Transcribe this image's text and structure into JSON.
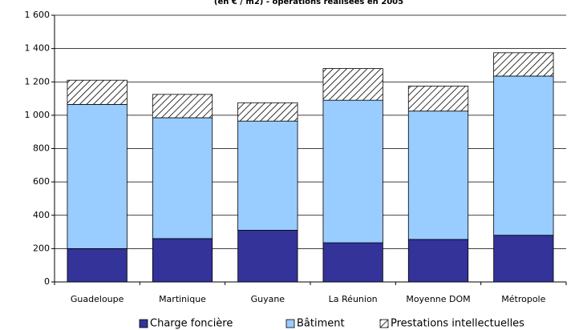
{
  "chart_data": {
    "type": "stacked_bar",
    "title": "(en € / m2) - opérations réalisées en 2005",
    "categories": [
      "Guadeloupe",
      "Martinique",
      "Guyane",
      "La Réunion",
      "Moyenne DOM",
      "Métropole"
    ],
    "series": [
      {
        "name": "Charge foncière",
        "color": "#333399",
        "values": [
          200,
          260,
          310,
          235,
          255,
          280
        ]
      },
      {
        "name": "Bâtiment",
        "color": "#99ccff",
        "values": [
          865,
          725,
          655,
          855,
          770,
          955
        ]
      },
      {
        "name": "Prestations intellectuelles",
        "color": "#ffffff",
        "hatch": true,
        "values": [
          145,
          140,
          110,
          190,
          150,
          140
        ]
      }
    ],
    "ylim": [
      0,
      1600
    ],
    "yticks": [
      0,
      200,
      400,
      600,
      800,
      {
        "value": 1000,
        "label": "1 000"
      },
      {
        "value": 1200,
        "label": "1 200"
      },
      {
        "value": 1400,
        "label": "1 400"
      },
      {
        "value": 1600,
        "label": "1 600"
      }
    ],
    "grid": true,
    "legend": "bottom"
  }
}
